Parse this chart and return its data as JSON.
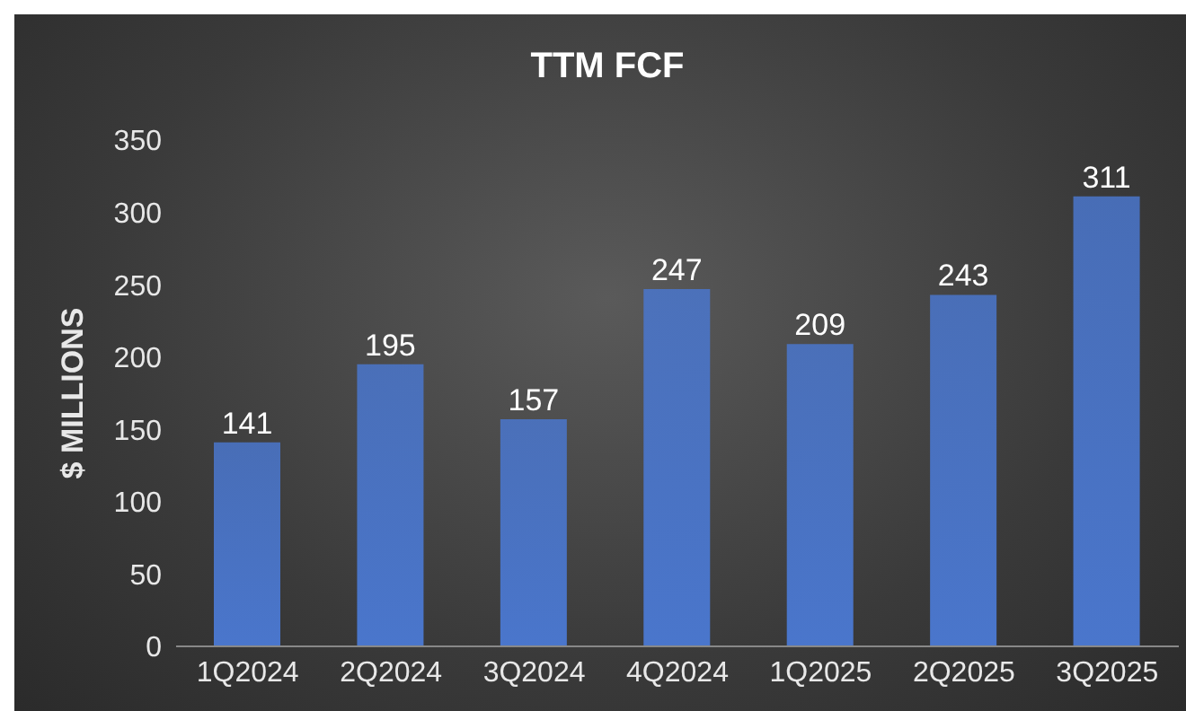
{
  "chart_data": {
    "type": "bar",
    "title": "TTM FCF",
    "ylabel": "$ MILLIONS",
    "categories": [
      "1Q2024",
      "2Q2024",
      "3Q2024",
      "4Q2024",
      "1Q2025",
      "2Q2025",
      "3Q2025"
    ],
    "values": [
      141,
      195,
      157,
      247,
      209,
      243,
      311
    ],
    "color": "#4a76cc",
    "ylim": [
      0,
      350
    ],
    "yticks": [
      0,
      50,
      100,
      150,
      200,
      250,
      300,
      350
    ],
    "grid": false,
    "data_labels": true,
    "legend": false
  }
}
